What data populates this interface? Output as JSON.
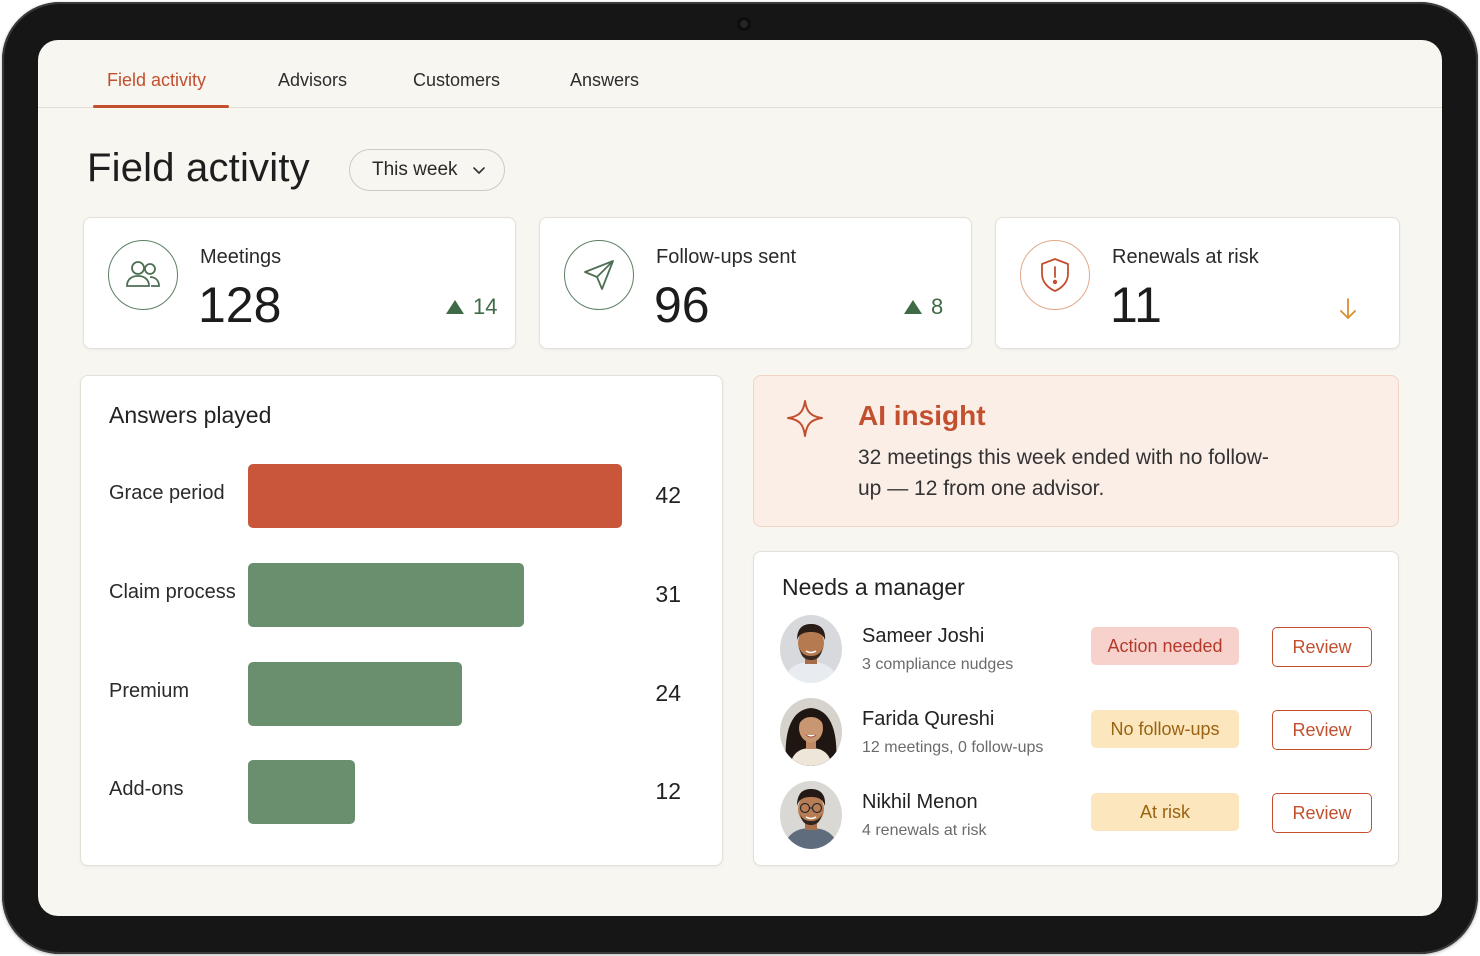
{
  "tabs": [
    {
      "label": "Field activity",
      "active": true
    },
    {
      "label": "Advisors"
    },
    {
      "label": "Customers"
    },
    {
      "label": "Answers"
    }
  ],
  "header": {
    "title": "Field activity",
    "period": "This week"
  },
  "kpis": {
    "meetings": {
      "label": "Meetings",
      "value": "128",
      "delta": "14",
      "icon": "people-icon"
    },
    "followups": {
      "label": "Follow-ups sent",
      "value": "96",
      "delta": "8",
      "icon": "send-icon"
    },
    "renewals": {
      "label": "Renewals at risk",
      "value": "11",
      "trend": "down",
      "icon": "shield-alert-icon"
    }
  },
  "answers_played": {
    "title": "Answers played",
    "max": 42,
    "items": [
      {
        "label": "Grace period",
        "value": 42,
        "highlight": true
      },
      {
        "label": "Claim process",
        "value": 31
      },
      {
        "label": "Premium",
        "value": 24
      },
      {
        "label": "Add-ons",
        "value": 12
      }
    ]
  },
  "insight": {
    "title": "AI insight",
    "text": "32 meetings this week ended with no follow-up — 12 from one advisor."
  },
  "needs_manager": {
    "title": "Needs a manager",
    "people": [
      {
        "name": "Sameer Joshi",
        "detail": "3 compliance nudges",
        "badge": "Action needed",
        "badge_style": "red",
        "action": "Review"
      },
      {
        "name": "Farida Qureshi",
        "detail": "12 meetings, 0 follow-ups",
        "badge": "No follow-ups",
        "badge_style": "amber",
        "action": "Review"
      },
      {
        "name": "Nikhil Menon",
        "detail": "4 renewals at risk",
        "badge": "At risk",
        "badge_style": "amber",
        "action": "Review"
      }
    ]
  },
  "colors": {
    "accent": "#c2502f",
    "bar_default": "#6a8f6e",
    "bar_highlight": "#c9563a",
    "positive": "#3f6a48",
    "warning": "#d9902f"
  }
}
